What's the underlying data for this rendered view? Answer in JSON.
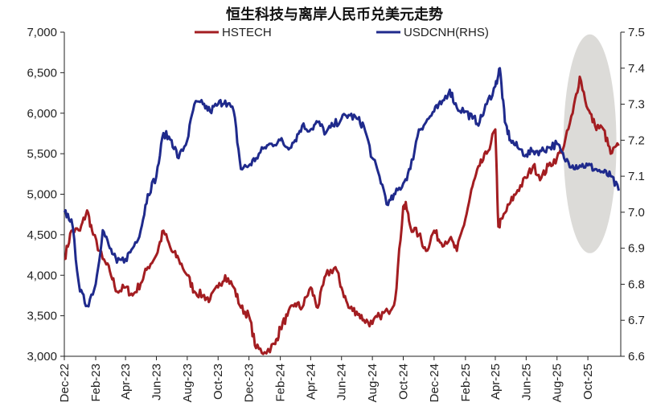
{
  "chart_data": {
    "type": "line",
    "title": "恒生科技与离岸人民币兑美元走势",
    "legend": {
      "placement": "top-center"
    },
    "grid": false,
    "x_tick_labels": [
      "Dec-22",
      "Feb-23",
      "Apr-23",
      "Jun-23",
      "Aug-23",
      "Oct-23",
      "Dec-23",
      "Feb-24",
      "Apr-24",
      "Jun-24",
      "Aug-24",
      "Oct-24",
      "Dec-24",
      "Feb-25",
      "Apr-25",
      "Jun-25",
      "Aug-25",
      "Oct-25"
    ],
    "x_range": [
      "2022-12-01",
      "2025-12-05"
    ],
    "y_left": {
      "ylim": [
        3000,
        7000
      ],
      "ticks": [
        "3,000",
        "3,500",
        "4,000",
        "4,500",
        "5,000",
        "5,500",
        "6,000",
        "6,500",
        "7,000"
      ]
    },
    "y_right": {
      "ylim": [
        6.6,
        7.5
      ],
      "ticks": [
        "6.6",
        "6.7",
        "6.8",
        "6.9",
        "7.0",
        "7.1",
        "7.2",
        "7.3",
        "7.4",
        "7.5"
      ]
    },
    "series": [
      {
        "name": "HSTECH",
        "axis": "left",
        "color": "#a31d21",
        "x": [
          "2022-12-01",
          "2022-12-15",
          "2023-01-01",
          "2023-01-15",
          "2023-01-27",
          "2023-02-15",
          "2023-03-01",
          "2023-03-15",
          "2023-04-01",
          "2023-04-15",
          "2023-05-01",
          "2023-05-15",
          "2023-06-01",
          "2023-06-15",
          "2023-07-01",
          "2023-07-15",
          "2023-08-01",
          "2023-08-15",
          "2023-09-01",
          "2023-09-15",
          "2023-10-01",
          "2023-10-15",
          "2023-11-01",
          "2023-11-15",
          "2023-12-01",
          "2023-12-15",
          "2024-01-01",
          "2024-01-22",
          "2024-02-01",
          "2024-02-15",
          "2024-03-01",
          "2024-03-15",
          "2024-04-01",
          "2024-04-15",
          "2024-05-01",
          "2024-05-20",
          "2024-06-01",
          "2024-06-15",
          "2024-07-01",
          "2024-07-15",
          "2024-08-01",
          "2024-08-15",
          "2024-09-01",
          "2024-09-15",
          "2024-10-01",
          "2024-10-07",
          "2024-10-15",
          "2024-11-01",
          "2024-11-15",
          "2024-12-01",
          "2024-12-15",
          "2025-01-01",
          "2025-01-15",
          "2025-02-01",
          "2025-02-15",
          "2025-03-01",
          "2025-03-15",
          "2025-04-01",
          "2025-04-07",
          "2025-04-15",
          "2025-05-01",
          "2025-05-15",
          "2025-06-01",
          "2025-06-15",
          "2025-07-01",
          "2025-07-15",
          "2025-08-01",
          "2025-08-15",
          "2025-09-01",
          "2025-09-15",
          "2025-10-01",
          "2025-10-15",
          "2025-11-01",
          "2025-11-15",
          "2025-12-01"
        ],
        "values": [
          4200,
          4550,
          4550,
          4800,
          4500,
          4200,
          4050,
          3800,
          3850,
          3750,
          3900,
          4100,
          4250,
          4550,
          4300,
          4200,
          4000,
          3800,
          3750,
          3700,
          3850,
          4000,
          3850,
          3600,
          3500,
          3100,
          3050,
          3150,
          3350,
          3500,
          3650,
          3600,
          3850,
          3600,
          4000,
          4100,
          3850,
          3600,
          3550,
          3450,
          3400,
          3500,
          3550,
          3700,
          4850,
          4850,
          4600,
          4500,
          4300,
          4550,
          4400,
          4450,
          4300,
          4700,
          5100,
          5350,
          5500,
          5800,
          4600,
          4700,
          4900,
          5050,
          5200,
          5350,
          5200,
          5350,
          5450,
          5600,
          6000,
          6450,
          6050,
          5850,
          5800,
          5500,
          5600
        ]
      },
      {
        "name": "USDCNH(RHS)",
        "axis": "right",
        "color": "#1f2a8c",
        "x": [
          "2022-12-01",
          "2022-12-15",
          "2023-01-01",
          "2023-01-15",
          "2023-02-01",
          "2023-02-15",
          "2023-03-01",
          "2023-03-15",
          "2023-04-01",
          "2023-04-15",
          "2023-05-01",
          "2023-05-15",
          "2023-06-01",
          "2023-06-15",
          "2023-07-01",
          "2023-07-15",
          "2023-08-01",
          "2023-08-15",
          "2023-09-01",
          "2023-09-15",
          "2023-10-01",
          "2023-10-15",
          "2023-11-01",
          "2023-11-15",
          "2023-12-01",
          "2023-12-15",
          "2024-01-01",
          "2024-01-15",
          "2024-02-01",
          "2024-02-15",
          "2024-03-01",
          "2024-03-15",
          "2024-04-01",
          "2024-04-15",
          "2024-05-01",
          "2024-05-15",
          "2024-06-01",
          "2024-06-15",
          "2024-07-01",
          "2024-07-15",
          "2024-08-01",
          "2024-08-15",
          "2024-09-01",
          "2024-09-15",
          "2024-10-01",
          "2024-10-15",
          "2024-11-01",
          "2024-11-15",
          "2024-12-01",
          "2024-12-15",
          "2025-01-01",
          "2025-01-15",
          "2025-02-01",
          "2025-02-15",
          "2025-03-01",
          "2025-03-15",
          "2025-04-01",
          "2025-04-10",
          "2025-04-20",
          "2025-05-01",
          "2025-05-15",
          "2025-06-01",
          "2025-06-15",
          "2025-07-01",
          "2025-07-15",
          "2025-08-01",
          "2025-08-15",
          "2025-09-01",
          "2025-09-15",
          "2025-10-01",
          "2025-10-15",
          "2025-11-01",
          "2025-11-15",
          "2025-12-01"
        ],
        "values": [
          7.0,
          6.98,
          6.78,
          6.74,
          6.8,
          6.95,
          6.9,
          6.86,
          6.87,
          6.9,
          6.95,
          7.05,
          7.1,
          7.22,
          7.2,
          7.15,
          7.2,
          7.3,
          7.3,
          7.28,
          7.3,
          7.31,
          7.28,
          7.12,
          7.13,
          7.15,
          7.18,
          7.19,
          7.2,
          7.18,
          7.2,
          7.24,
          7.23,
          7.25,
          7.22,
          7.24,
          7.26,
          7.27,
          7.26,
          7.24,
          7.15,
          7.1,
          7.02,
          7.05,
          7.08,
          7.12,
          7.23,
          7.25,
          7.28,
          7.3,
          7.34,
          7.29,
          7.28,
          7.26,
          7.25,
          7.3,
          7.35,
          7.4,
          7.25,
          7.2,
          7.18,
          7.16,
          7.17,
          7.17,
          7.18,
          7.19,
          7.15,
          7.13,
          7.13,
          7.13,
          7.12,
          7.11,
          7.1,
          7.06
        ]
      }
    ],
    "annotations": [
      {
        "type": "ellipse-highlight",
        "color": "#d6d5d1",
        "x_center": "2025-10-05",
        "y_right_center": 7.19
      }
    ]
  }
}
